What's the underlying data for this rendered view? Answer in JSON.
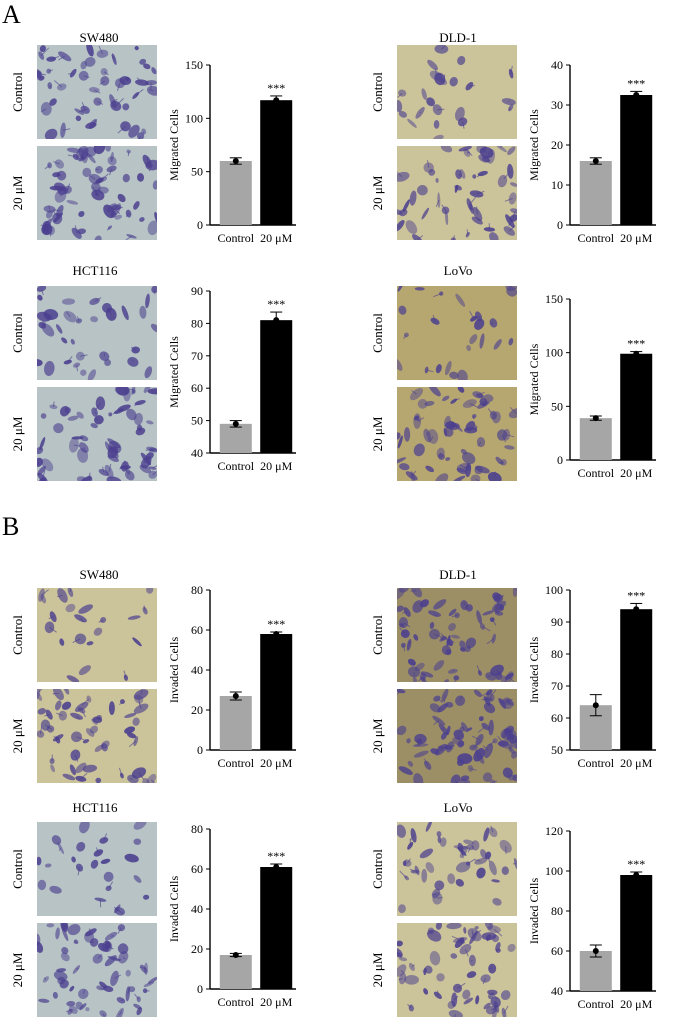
{
  "figure": {
    "section_a": "A",
    "section_b": "B"
  },
  "colors": {
    "control_bar": "#a6a6a6",
    "treated_bar": "#000000",
    "stain_purple": "#4b3f8f",
    "bg_blue_grey": "#b7c3c4",
    "bg_khaki": "#cbc39a",
    "bg_tan": "#b6a771",
    "bg_dark_olive": "#9c8f66"
  },
  "panels": [
    {
      "title": "SW480",
      "row_labels": [
        "Control",
        "20 μM"
      ],
      "micro_bg": "bg_blue_grey",
      "density": [
        0.55,
        0.8
      ]
    },
    {
      "title": "DLD-1",
      "row_labels": [
        "Control",
        "20 μM"
      ],
      "micro_bg": "bg_khaki",
      "density": [
        0.18,
        0.55
      ]
    },
    {
      "title": "HCT116",
      "row_labels": [
        "Control",
        "20 μM"
      ],
      "micro_bg": "bg_blue_grey",
      "density": [
        0.35,
        0.75
      ]
    },
    {
      "title": "LoVo",
      "row_labels": [
        "Control",
        "20 μM"
      ],
      "micro_bg": "bg_tan",
      "density": [
        0.2,
        0.7
      ]
    },
    {
      "title": "SW480",
      "row_labels": [
        "Control",
        "20 μM"
      ],
      "micro_bg": "bg_khaki",
      "density": [
        0.15,
        0.6
      ]
    },
    {
      "title": "DLD-1",
      "row_labels": [
        "Control",
        "20 μM"
      ],
      "micro_bg": "bg_dark_olive",
      "density": [
        0.75,
        0.9
      ]
    },
    {
      "title": "HCT116",
      "row_labels": [
        "Control",
        "20 μM"
      ],
      "micro_bg": "bg_blue_grey",
      "density": [
        0.2,
        0.7
      ]
    },
    {
      "title": "LoVo",
      "row_labels": [
        "Control",
        "20 μM"
      ],
      "micro_bg": "bg_khaki",
      "density": [
        0.45,
        0.65
      ]
    }
  ],
  "chart_data": [
    {
      "type": "bar",
      "categories": [
        "Control",
        "20 μM"
      ],
      "values": [
        60,
        117
      ],
      "errors": [
        3,
        4
      ],
      "ylabel": "Migrated Cells",
      "ylim": [
        0,
        150
      ],
      "yticks": [
        0,
        50,
        100,
        150
      ],
      "annotation": "***"
    },
    {
      "type": "bar",
      "categories": [
        "Control",
        "20 μM"
      ],
      "values": [
        16,
        32.5
      ],
      "errors": [
        0.8,
        0.9
      ],
      "ylabel": "Migrated Cells",
      "ylim": [
        0,
        40
      ],
      "yticks": [
        0,
        10,
        20,
        30,
        40
      ],
      "annotation": "***"
    },
    {
      "type": "bar",
      "categories": [
        "Control",
        "20 μM"
      ],
      "values": [
        49,
        81
      ],
      "errors": [
        1,
        2.5
      ],
      "ylabel": "Migrated Cells",
      "ylim": [
        40,
        90
      ],
      "yticks": [
        40,
        50,
        60,
        70,
        80,
        90
      ],
      "annotation": "***"
    },
    {
      "type": "bar",
      "categories": [
        "Control",
        "20 μM"
      ],
      "values": [
        39,
        99
      ],
      "errors": [
        2,
        2
      ],
      "ylabel": "Migrated Cells",
      "ylim": [
        0,
        150
      ],
      "yticks": [
        0,
        50,
        100,
        150
      ],
      "annotation": "***"
    },
    {
      "type": "bar",
      "categories": [
        "Control",
        "20 μM"
      ],
      "values": [
        27,
        58
      ],
      "errors": [
        2,
        1
      ],
      "ylabel": "Invaded Cells",
      "ylim": [
        0,
        80
      ],
      "yticks": [
        0,
        20,
        40,
        60,
        80
      ],
      "annotation": "***"
    },
    {
      "type": "bar",
      "categories": [
        "Control",
        "20 μM"
      ],
      "values": [
        64,
        94
      ],
      "errors": [
        3.3,
        1.8
      ],
      "ylabel": "Invaded Cells",
      "ylim": [
        50,
        100
      ],
      "yticks": [
        50,
        60,
        70,
        80,
        90,
        100
      ],
      "annotation": "***"
    },
    {
      "type": "bar",
      "categories": [
        "Control",
        "20 μM"
      ],
      "values": [
        17,
        61
      ],
      "errors": [
        0.8,
        1.5
      ],
      "ylabel": "Invaded Cells",
      "ylim": [
        0,
        80
      ],
      "yticks": [
        0,
        20,
        40,
        60,
        80
      ],
      "annotation": "***"
    },
    {
      "type": "bar",
      "categories": [
        "Control",
        "20 μM"
      ],
      "values": [
        60,
        98
      ],
      "errors": [
        3,
        1.5
      ],
      "ylabel": "Invaded Cells",
      "ylim": [
        40,
        120
      ],
      "yticks": [
        40,
        60,
        80,
        100,
        120
      ],
      "annotation": "***"
    }
  ]
}
